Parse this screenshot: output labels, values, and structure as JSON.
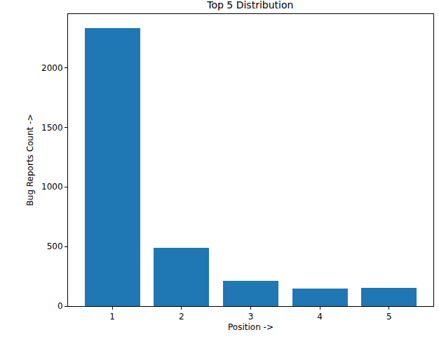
{
  "chart_data": {
    "type": "bar",
    "title": "Top 5 Distribution",
    "x_label": "Position ->",
    "y_label": "Bug Reports Count ->",
    "x": [
      1,
      2,
      3,
      4,
      5
    ],
    "values": [
      2333,
      488,
      214,
      149,
      155
    ],
    "color": "#1f77b4",
    "xlim": [
      0.36,
      5.64
    ],
    "xticks": [
      1,
      2,
      3,
      4,
      5
    ],
    "ylim": [
      0,
      2450
    ],
    "yticks": [
      0,
      500,
      1000,
      1500,
      2000
    ],
    "grid": false
  }
}
